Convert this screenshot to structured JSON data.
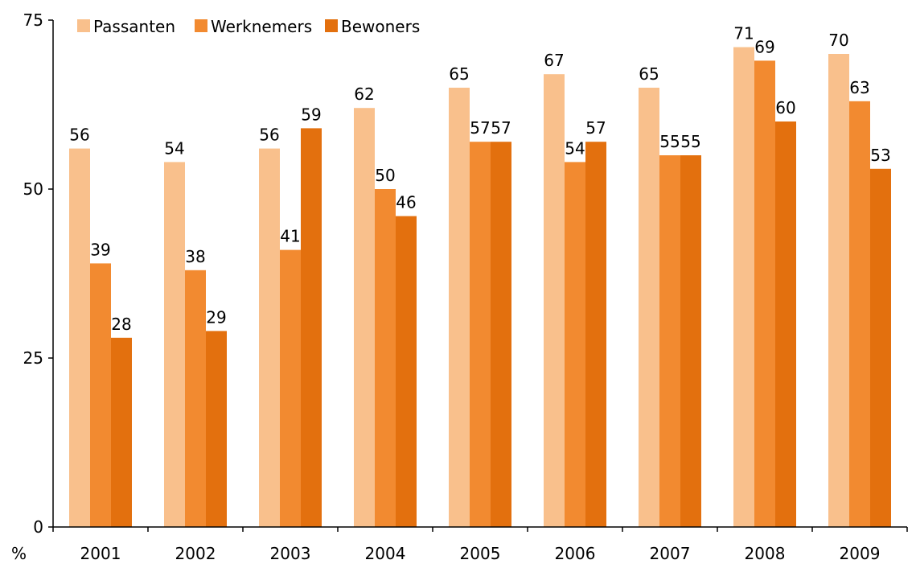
{
  "chart_data": {
    "type": "bar",
    "categories": [
      "2001",
      "2002",
      "2003",
      "2004",
      "2005",
      "2006",
      "2007",
      "2008",
      "2009"
    ],
    "series": [
      {
        "name": "Passanten",
        "values": [
          56,
          54,
          56,
          62,
          65,
          67,
          65,
          71,
          70
        ],
        "color": "#f9c08c"
      },
      {
        "name": "Werknemers",
        "values": [
          39,
          38,
          41,
          50,
          57,
          54,
          55,
          69,
          63
        ],
        "color": "#f28a30"
      },
      {
        "name": "Bewoners",
        "values": [
          28,
          29,
          59,
          46,
          57,
          57,
          55,
          60,
          53
        ],
        "color": "#e3700e"
      }
    ],
    "ylim": [
      0,
      75
    ],
    "yticks": [
      "0",
      "25",
      "50",
      "75"
    ],
    "y_unit_label": "%",
    "legend_position": "top-left",
    "grid": false
  }
}
